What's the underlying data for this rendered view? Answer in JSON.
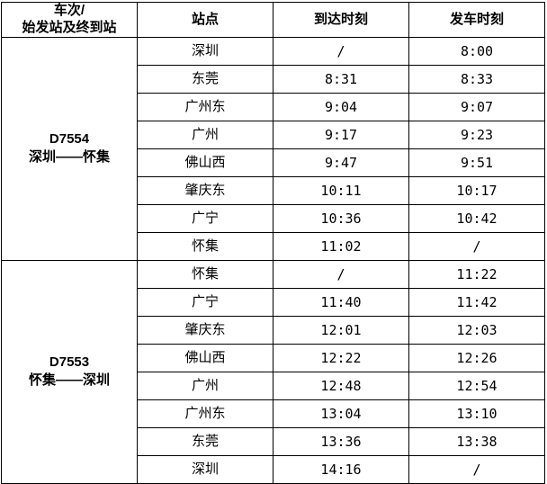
{
  "colors": {
    "border": "#000000",
    "background": "#ffffff",
    "text": "#000000"
  },
  "header": {
    "train_col_line1": "车次/",
    "train_col_line2": "始发站及终到站",
    "station_col": "站点",
    "arrival_col": "到达时刻",
    "departure_col": "发车时刻"
  },
  "sections": [
    {
      "train_no": "D7554",
      "route": "深圳——怀集",
      "rows": [
        {
          "station": "深圳",
          "arrival": "/",
          "departure": "8:00"
        },
        {
          "station": "东莞",
          "arrival": "8:31",
          "departure": "8:33"
        },
        {
          "station": "广州东",
          "arrival": "9:04",
          "departure": "9:07"
        },
        {
          "station": "广州",
          "arrival": "9:17",
          "departure": "9:23"
        },
        {
          "station": "佛山西",
          "arrival": "9:47",
          "departure": "9:51"
        },
        {
          "station": "肇庆东",
          "arrival": "10:11",
          "departure": "10:17"
        },
        {
          "station": "广宁",
          "arrival": "10:36",
          "departure": "10:42"
        },
        {
          "station": "怀集",
          "arrival": "11:02",
          "departure": "/"
        }
      ]
    },
    {
      "train_no": "D7553",
      "route": "怀集——深圳",
      "rows": [
        {
          "station": "怀集",
          "arrival": "/",
          "departure": "11:22"
        },
        {
          "station": "广宁",
          "arrival": "11:40",
          "departure": "11:42"
        },
        {
          "station": "肇庆东",
          "arrival": "12:01",
          "departure": "12:03"
        },
        {
          "station": "佛山西",
          "arrival": "12:22",
          "departure": "12:26"
        },
        {
          "station": "广州",
          "arrival": "12:48",
          "departure": "12:54"
        },
        {
          "station": "广州东",
          "arrival": "13:04",
          "departure": "13:10"
        },
        {
          "station": "东莞",
          "arrival": "13:36",
          "departure": "13:38"
        },
        {
          "station": "深圳",
          "arrival": "14:16",
          "departure": "/"
        }
      ]
    }
  ]
}
